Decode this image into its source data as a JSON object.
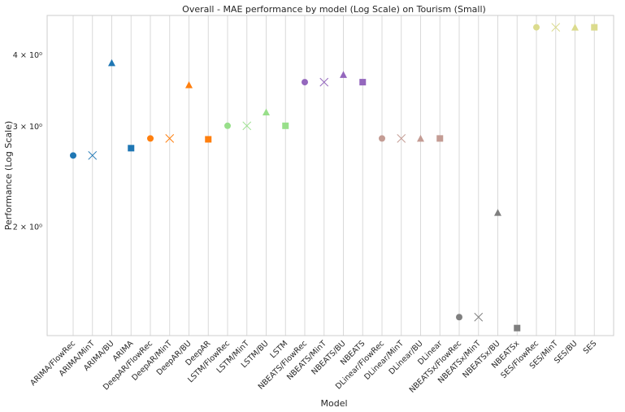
{
  "chart_data": {
    "type": "scatter",
    "title": "Overall - MAE performance by model (Log Scale) on Tourism (Small)",
    "xlabel": "Model",
    "ylabel": "Performance (Log Scale)",
    "yscale": "log",
    "ylim": [
      1.29,
      4.7
    ],
    "y_ticks": [
      {
        "value": 2,
        "label": "2 × 10⁰"
      },
      {
        "value": 3,
        "label": "3 × 10⁰"
      },
      {
        "value": 4,
        "label": "4 × 10⁰"
      }
    ],
    "grid": {
      "vertical": true,
      "horizontal": false
    },
    "categories": [
      "ARIMA/FlowRec",
      "ARIMA/MinT",
      "ARIMA/BU",
      "ARIMA",
      "DeepAR/FlowRec",
      "DeepAR/MinT",
      "DeepAR/BU",
      "DeepAR",
      "LSTM/FlowRec",
      "LSTM/MinT",
      "LSTM/BU",
      "LSTM",
      "NBEATS/FlowRec",
      "NBEATS/MinT",
      "NBEATS/BU",
      "NBEATS",
      "DLinear/FlowRec",
      "DLinear/MinT",
      "DLinear/BU",
      "DLinear",
      "NBEATSx/FlowRec",
      "NBEATSx/MinT",
      "NBEATSx/BU",
      "NBEATSx",
      "SES/FlowRec",
      "SES/MinT",
      "SES/BU",
      "SES"
    ],
    "points": [
      {
        "x": "ARIMA/FlowRec",
        "y": 2.67,
        "marker": "circle",
        "color": "#1f77b4"
      },
      {
        "x": "ARIMA/MinT",
        "y": 2.67,
        "marker": "x",
        "color": "#1f77b4"
      },
      {
        "x": "ARIMA/BU",
        "y": 3.88,
        "marker": "triangle",
        "color": "#1f77b4"
      },
      {
        "x": "ARIMA",
        "y": 2.75,
        "marker": "square",
        "color": "#1f77b4"
      },
      {
        "x": "DeepAR/FlowRec",
        "y": 2.86,
        "marker": "circle",
        "color": "#ff7f0e"
      },
      {
        "x": "DeepAR/MinT",
        "y": 2.86,
        "marker": "x",
        "color": "#ff7f0e"
      },
      {
        "x": "DeepAR/BU",
        "y": 3.55,
        "marker": "triangle",
        "color": "#ff7f0e"
      },
      {
        "x": "DeepAR",
        "y": 2.85,
        "marker": "square",
        "color": "#ff7f0e"
      },
      {
        "x": "LSTM/FlowRec",
        "y": 3.01,
        "marker": "circle",
        "color": "#98df8a"
      },
      {
        "x": "LSTM/MinT",
        "y": 3.01,
        "marker": "x",
        "color": "#98df8a"
      },
      {
        "x": "LSTM/BU",
        "y": 3.18,
        "marker": "triangle",
        "color": "#98df8a"
      },
      {
        "x": "LSTM",
        "y": 3.01,
        "marker": "square",
        "color": "#98df8a"
      },
      {
        "x": "NBEATS/FlowRec",
        "y": 3.59,
        "marker": "circle",
        "color": "#9467bd"
      },
      {
        "x": "NBEATS/MinT",
        "y": 3.59,
        "marker": "x",
        "color": "#9467bd"
      },
      {
        "x": "NBEATS/BU",
        "y": 3.7,
        "marker": "triangle",
        "color": "#9467bd"
      },
      {
        "x": "NBEATS",
        "y": 3.59,
        "marker": "square",
        "color": "#9467bd"
      },
      {
        "x": "DLinear/FlowRec",
        "y": 2.86,
        "marker": "circle",
        "color": "#c49c94"
      },
      {
        "x": "DLinear/MinT",
        "y": 2.86,
        "marker": "x",
        "color": "#c49c94"
      },
      {
        "x": "DLinear/BU",
        "y": 2.86,
        "marker": "triangle",
        "color": "#c49c94"
      },
      {
        "x": "DLinear",
        "y": 2.86,
        "marker": "square",
        "color": "#c49c94"
      },
      {
        "x": "NBEATSx/FlowRec",
        "y": 1.39,
        "marker": "circle",
        "color": "#7f7f7f"
      },
      {
        "x": "NBEATSx/MinT",
        "y": 1.39,
        "marker": "x",
        "color": "#7f7f7f"
      },
      {
        "x": "NBEATSx/BU",
        "y": 2.12,
        "marker": "triangle",
        "color": "#7f7f7f"
      },
      {
        "x": "NBEATSx",
        "y": 1.33,
        "marker": "square",
        "color": "#7f7f7f"
      },
      {
        "x": "SES/FlowRec",
        "y": 4.48,
        "marker": "circle",
        "color": "#dbdb8d"
      },
      {
        "x": "SES/MinT",
        "y": 4.48,
        "marker": "x",
        "color": "#dbdb8d"
      },
      {
        "x": "SES/BU",
        "y": 4.48,
        "marker": "triangle",
        "color": "#dbdb8d"
      },
      {
        "x": "SES",
        "y": 4.48,
        "marker": "square",
        "color": "#dbdb8d"
      }
    ]
  }
}
